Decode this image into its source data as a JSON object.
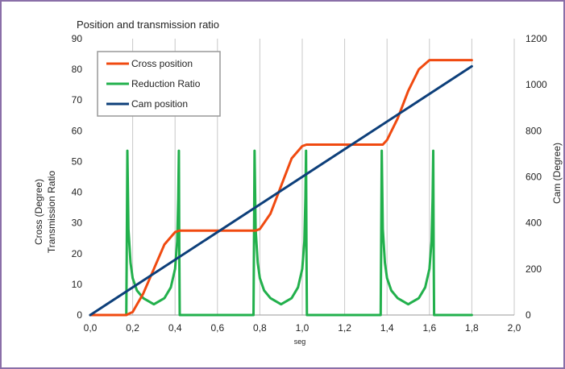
{
  "chart_data": {
    "type": "line",
    "title": "Position and transmission ratio",
    "xlabel": "seg",
    "ylabel_left": [
      "Cross (Degree)",
      "Transmission Ratio"
    ],
    "ylabel_right": "Cam (Degree)",
    "xlim": [
      0,
      2.0
    ],
    "ylim_left": [
      0,
      90
    ],
    "ylim_right": [
      0,
      1200
    ],
    "x_ticks": [
      "0,0",
      "0,2",
      "0,4",
      "0,6",
      "0,8",
      "1,0",
      "1,2",
      "1,4",
      "1,6",
      "1,8",
      "2,0"
    ],
    "y_left_ticks": [
      "0",
      "10",
      "20",
      "30",
      "40",
      "50",
      "60",
      "70",
      "80",
      "90"
    ],
    "y_right_ticks": [
      "0",
      "200",
      "400",
      "600",
      "800",
      "1000",
      "1200"
    ],
    "grid": "vertical",
    "legend_position": "top-left",
    "series": [
      {
        "name": "Cross position",
        "color": "#f04a10",
        "axis": "left",
        "x": [
          0,
          0.17,
          0.2,
          0.25,
          0.3,
          0.35,
          0.4,
          0.42,
          0.78,
          0.8,
          0.85,
          0.9,
          0.95,
          1.0,
          1.02,
          1.38,
          1.4,
          1.45,
          1.5,
          1.55,
          1.6,
          1.62,
          1.8
        ],
        "y": [
          0,
          0,
          1,
          7,
          15,
          23,
          27,
          27.5,
          27.5,
          28,
          33,
          42,
          51,
          55,
          55.5,
          55.5,
          57,
          64,
          73,
          80,
          83,
          83,
          83
        ]
      },
      {
        "name": "Reduction Ratio",
        "color": "#22b04c",
        "axis": "left",
        "x": [
          0,
          0.17,
          0.172,
          0.175,
          0.18,
          0.19,
          0.2,
          0.22,
          0.25,
          0.3,
          0.35,
          0.38,
          0.4,
          0.41,
          0.415,
          0.418,
          0.42,
          0.422,
          0.425,
          0.77,
          0.772,
          0.775,
          0.78,
          0.79,
          0.8,
          0.82,
          0.85,
          0.9,
          0.95,
          0.98,
          1.0,
          1.01,
          1.015,
          1.018,
          1.02,
          1.022,
          1.025,
          1.37,
          1.372,
          1.375,
          1.38,
          1.39,
          1.4,
          1.42,
          1.45,
          1.5,
          1.55,
          1.58,
          1.6,
          1.61,
          1.615,
          1.618,
          1.62,
          1.622,
          1.625,
          1.8
        ],
        "y": [
          0,
          0,
          20,
          53.5,
          28,
          17,
          12,
          8,
          5.5,
          3.5,
          5.5,
          9,
          15,
          24,
          38,
          53.5,
          20,
          0,
          0,
          0,
          20,
          53.5,
          28,
          17,
          12,
          8,
          5.5,
          3.5,
          5.5,
          9,
          15,
          24,
          38,
          53.5,
          20,
          0,
          0,
          0,
          20,
          53.5,
          28,
          17,
          12,
          8,
          5.5,
          3.5,
          5.5,
          9,
          15,
          24,
          38,
          53.5,
          20,
          0,
          0,
          0
        ]
      },
      {
        "name": "Cam position",
        "color": "#0d3f7a",
        "axis": "right",
        "x": [
          0,
          1.8
        ],
        "y": [
          0,
          1080
        ]
      }
    ]
  }
}
